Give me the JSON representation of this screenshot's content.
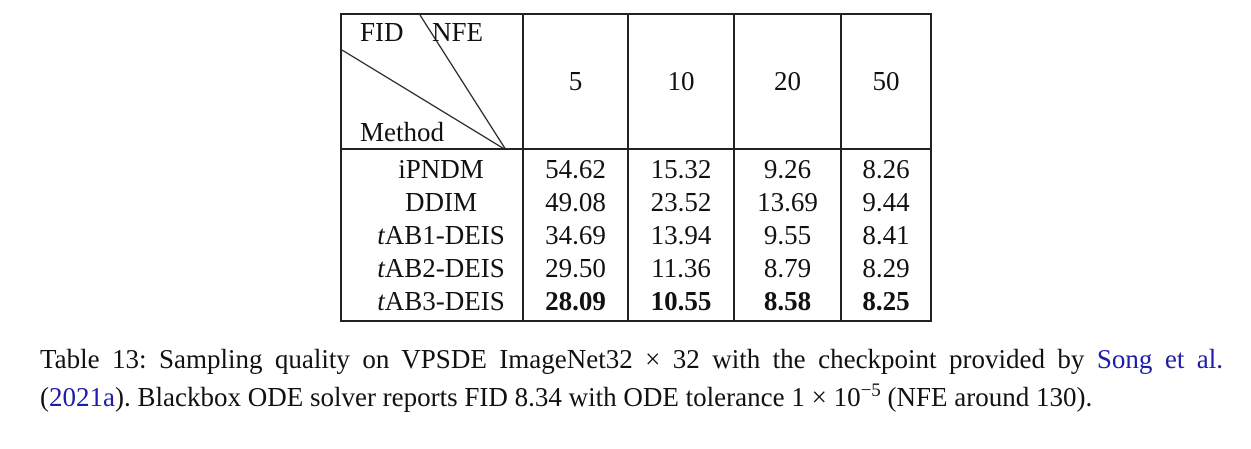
{
  "table": {
    "corner": {
      "top_left": "FID",
      "top_right": "NFE",
      "bottom": "Method"
    },
    "columns": [
      "5",
      "10",
      "20",
      "50"
    ],
    "rows": [
      {
        "prefix": "",
        "name": "iPNDM",
        "values": [
          "54.62",
          "15.32",
          "9.26",
          "8.26"
        ],
        "bold": false
      },
      {
        "prefix": "",
        "name": "DDIM",
        "values": [
          "49.08",
          "23.52",
          "13.69",
          "9.44"
        ],
        "bold": false
      },
      {
        "prefix": "t",
        "name": "AB1-DEIS",
        "values": [
          "34.69",
          "13.94",
          "9.55",
          "8.41"
        ],
        "bold": false
      },
      {
        "prefix": "t",
        "name": "AB2-DEIS",
        "values": [
          "29.50",
          "11.36",
          "8.79",
          "8.29"
        ],
        "bold": false
      },
      {
        "prefix": "t",
        "name": "AB3-DEIS",
        "values": [
          "28.09",
          "10.55",
          "8.58",
          "8.25"
        ],
        "bold": true
      }
    ]
  },
  "caption": {
    "part1": "Table 13: Sampling quality on VPSDE ImageNet32 × 32 with the checkpoint provided by",
    "cite_author": "Song et al.",
    "cite_open": "(",
    "cite_year": "2021a",
    "cite_close": ").",
    "part2": "Blackbox ODE solver reports FID 8.34 with ODE tolerance 1 × 10",
    "exponent": "−5",
    "part3": "(NFE around 130)."
  }
}
